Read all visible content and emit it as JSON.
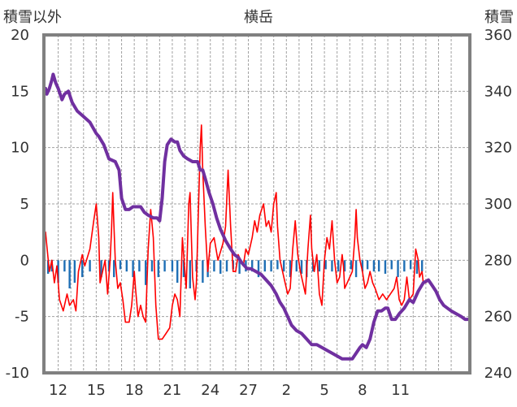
{
  "chart_data": {
    "type": "line",
    "title": "横岳",
    "left_axis_label": "積雪以外",
    "right_axis_label": "積雪",
    "left_ticks": [
      20,
      15,
      10,
      5,
      0,
      -5,
      -10
    ],
    "right_ticks": [
      360,
      340,
      320,
      300,
      280,
      260,
      240
    ],
    "x_ticks": [
      "12",
      "15",
      "18",
      "21",
      "24",
      "27",
      "2",
      "5",
      "8",
      "11"
    ],
    "ylim_left": [
      -10,
      20
    ],
    "ylim_right": [
      240,
      360
    ],
    "x_range_days": [
      0,
      30
    ],
    "grid": true,
    "colors": {
      "frame": "#808080",
      "grid": "#a0a0a0",
      "temperature": "#ff0000",
      "precipitation": "#1f6fb5",
      "snow": "#7030a0"
    },
    "series": [
      {
        "name": "",
        "role": "temperature",
        "axis": "left",
        "color": "#ff0000",
        "points": [
          [
            0.0,
            2.5
          ],
          [
            0.3,
            -1.0
          ],
          [
            0.5,
            0.0
          ],
          [
            0.7,
            -2.0
          ],
          [
            0.9,
            -0.5
          ],
          [
            1.1,
            -3.5
          ],
          [
            1.4,
            -4.5
          ],
          [
            1.7,
            -3.0
          ],
          [
            1.9,
            -4.0
          ],
          [
            2.2,
            -3.5
          ],
          [
            2.4,
            -4.5
          ],
          [
            2.6,
            -1.0
          ],
          [
            2.9,
            0.5
          ],
          [
            3.1,
            -0.5
          ],
          [
            3.5,
            1.0
          ],
          [
            3.8,
            3.5
          ],
          [
            4.0,
            5.0
          ],
          [
            4.2,
            2.0
          ],
          [
            4.3,
            -2.0
          ],
          [
            4.5,
            -1.0
          ],
          [
            4.7,
            0.0
          ],
          [
            4.9,
            -3.0
          ],
          [
            5.1,
            0.0
          ],
          [
            5.2,
            2.5
          ],
          [
            5.3,
            6.0
          ],
          [
            5.4,
            3.0
          ],
          [
            5.5,
            0.0
          ],
          [
            5.7,
            -2.5
          ],
          [
            5.9,
            -2.0
          ],
          [
            6.1,
            -3.5
          ],
          [
            6.3,
            -5.5
          ],
          [
            6.6,
            -5.5
          ],
          [
            6.8,
            -4.0
          ],
          [
            7.0,
            -1.0
          ],
          [
            7.1,
            -2.5
          ],
          [
            7.3,
            -5.0
          ],
          [
            7.5,
            -4.0
          ],
          [
            7.7,
            -5.0
          ],
          [
            7.9,
            -5.5
          ],
          [
            8.0,
            -2.0
          ],
          [
            8.1,
            1.0
          ],
          [
            8.3,
            4.5
          ],
          [
            8.5,
            2.0
          ],
          [
            8.7,
            -4.0
          ],
          [
            8.9,
            -7.0
          ],
          [
            9.2,
            -7.0
          ],
          [
            9.5,
            -6.5
          ],
          [
            9.8,
            -6.0
          ],
          [
            10.0,
            -4.0
          ],
          [
            10.2,
            -3.0
          ],
          [
            10.4,
            -3.5
          ],
          [
            10.6,
            -5.0
          ],
          [
            10.8,
            2.0
          ],
          [
            11.0,
            -1.0
          ],
          [
            11.1,
            -2.5
          ],
          [
            11.3,
            5.0
          ],
          [
            11.4,
            6.0
          ],
          [
            11.6,
            -1.5
          ],
          [
            11.8,
            -3.5
          ],
          [
            11.9,
            -2.0
          ],
          [
            12.1,
            6.0
          ],
          [
            12.2,
            10.0
          ],
          [
            12.3,
            12.0
          ],
          [
            12.4,
            8.0
          ],
          [
            12.6,
            3.0
          ],
          [
            12.8,
            -1.0
          ],
          [
            13.0,
            1.5
          ],
          [
            13.3,
            2.0
          ],
          [
            13.6,
            0.0
          ],
          [
            14.0,
            1.5
          ],
          [
            14.2,
            3.0
          ],
          [
            14.4,
            8.0
          ],
          [
            14.6,
            3.0
          ],
          [
            14.8,
            -1.0
          ],
          [
            15.0,
            -1.0
          ],
          [
            15.2,
            0.5
          ],
          [
            15.4,
            0.0
          ],
          [
            15.6,
            -0.5
          ],
          [
            15.8,
            1.0
          ],
          [
            16.0,
            0.5
          ],
          [
            16.3,
            2.0
          ],
          [
            16.5,
            3.5
          ],
          [
            16.7,
            2.5
          ],
          [
            16.9,
            4.0
          ],
          [
            17.2,
            5.0
          ],
          [
            17.4,
            3.0
          ],
          [
            17.6,
            3.5
          ],
          [
            17.8,
            2.5
          ],
          [
            18.0,
            5.0
          ],
          [
            18.2,
            6.0
          ],
          [
            18.3,
            3.0
          ],
          [
            18.5,
            0.0
          ],
          [
            18.7,
            -1.0
          ],
          [
            18.9,
            -2.0
          ],
          [
            19.1,
            -3.0
          ],
          [
            19.3,
            -2.5
          ],
          [
            19.5,
            1.0
          ],
          [
            19.7,
            3.5
          ],
          [
            19.9,
            0.5
          ],
          [
            20.1,
            -1.0
          ],
          [
            20.3,
            -2.0
          ],
          [
            20.5,
            -3.0
          ],
          [
            20.7,
            1.0
          ],
          [
            20.9,
            4.0
          ],
          [
            21.0,
            1.0
          ],
          [
            21.2,
            -1.0
          ],
          [
            21.4,
            0.5
          ],
          [
            21.6,
            -3.0
          ],
          [
            21.8,
            -4.0
          ],
          [
            22.0,
            0.0
          ],
          [
            22.2,
            2.0
          ],
          [
            22.4,
            1.0
          ],
          [
            22.6,
            3.5
          ],
          [
            22.8,
            0.0
          ],
          [
            23.0,
            -2.0
          ],
          [
            23.2,
            -1.5
          ],
          [
            23.4,
            0.5
          ],
          [
            23.5,
            -0.5
          ],
          [
            23.6,
            -2.5
          ],
          [
            23.8,
            -2.0
          ],
          [
            24.0,
            -1.5
          ],
          [
            24.2,
            -1.0
          ],
          [
            24.4,
            2.0
          ],
          [
            24.5,
            4.5
          ],
          [
            24.6,
            2.0
          ],
          [
            24.8,
            0.0
          ],
          [
            25.0,
            -1.0
          ],
          [
            25.2,
            -2.5
          ],
          [
            25.4,
            -2.0
          ],
          [
            25.6,
            -1.0
          ],
          [
            25.8,
            -2.0
          ],
          [
            26.0,
            -2.5
          ],
          [
            26.3,
            -3.5
          ],
          [
            26.6,
            -3.0
          ],
          [
            26.9,
            -3.5
          ],
          [
            27.2,
            -3.0
          ],
          [
            27.5,
            -2.5
          ],
          [
            27.7,
            -1.5
          ],
          [
            27.9,
            -3.5
          ],
          [
            28.1,
            -4.0
          ],
          [
            28.3,
            -3.5
          ],
          [
            28.5,
            -1.5
          ],
          [
            28.7,
            -3.5
          ],
          [
            29.0,
            -3.0
          ],
          [
            29.2,
            1.0
          ],
          [
            29.4,
            0.0
          ],
          [
            29.5,
            -1.5
          ],
          [
            29.7,
            -1.0
          ],
          [
            29.8,
            -2.0
          ],
          [
            30.0,
            -2.0
          ]
        ]
      },
      {
        "name": "",
        "role": "snow",
        "axis": "right",
        "color": "#7030a0",
        "points": [
          [
            0.0,
            341
          ],
          [
            0.1,
            339
          ],
          [
            0.3,
            341
          ],
          [
            0.5,
            344
          ],
          [
            0.6,
            346
          ],
          [
            0.8,
            343
          ],
          [
            1.0,
            341
          ],
          [
            1.3,
            337
          ],
          [
            1.5,
            339
          ],
          [
            1.8,
            340
          ],
          [
            2.1,
            336
          ],
          [
            2.5,
            333
          ],
          [
            3.0,
            331
          ],
          [
            3.5,
            329
          ],
          [
            4.0,
            325
          ],
          [
            4.2,
            324
          ],
          [
            4.6,
            321
          ],
          [
            5.0,
            316
          ],
          [
            5.5,
            315
          ],
          [
            5.8,
            312
          ],
          [
            6.0,
            302
          ],
          [
            6.3,
            298
          ],
          [
            6.6,
            298
          ],
          [
            6.9,
            299
          ],
          [
            7.2,
            299
          ],
          [
            7.5,
            299
          ],
          [
            7.8,
            297
          ],
          [
            8.1,
            296
          ],
          [
            8.5,
            295
          ],
          [
            8.8,
            295
          ],
          [
            9.0,
            294
          ],
          [
            9.2,
            302
          ],
          [
            9.4,
            315
          ],
          [
            9.6,
            321
          ],
          [
            9.9,
            323
          ],
          [
            10.2,
            322
          ],
          [
            10.4,
            322
          ],
          [
            10.6,
            319
          ],
          [
            10.9,
            317
          ],
          [
            11.2,
            316
          ],
          [
            11.6,
            315
          ],
          [
            12.0,
            315
          ],
          [
            12.2,
            312
          ],
          [
            12.4,
            312
          ],
          [
            12.6,
            309
          ],
          [
            12.9,
            304
          ],
          [
            13.2,
            300
          ],
          [
            13.5,
            295
          ],
          [
            13.8,
            291
          ],
          [
            14.2,
            287
          ],
          [
            14.6,
            284
          ],
          [
            14.9,
            282
          ],
          [
            15.2,
            281
          ],
          [
            15.5,
            279
          ],
          [
            15.9,
            277
          ],
          [
            16.2,
            277
          ],
          [
            16.6,
            276
          ],
          [
            17.0,
            275
          ],
          [
            17.4,
            273
          ],
          [
            17.8,
            271
          ],
          [
            18.2,
            268
          ],
          [
            18.5,
            265
          ],
          [
            18.8,
            263
          ],
          [
            19.1,
            260
          ],
          [
            19.4,
            257
          ],
          [
            19.8,
            255
          ],
          [
            20.2,
            254
          ],
          [
            20.6,
            252
          ],
          [
            21.0,
            250
          ],
          [
            21.4,
            250
          ],
          [
            21.8,
            249
          ],
          [
            22.2,
            248
          ],
          [
            22.6,
            247
          ],
          [
            23.0,
            246
          ],
          [
            23.4,
            245
          ],
          [
            23.8,
            245
          ],
          [
            24.2,
            245
          ],
          [
            24.5,
            247
          ],
          [
            24.8,
            249
          ],
          [
            25.0,
            250
          ],
          [
            25.3,
            249
          ],
          [
            25.6,
            252
          ],
          [
            25.9,
            258
          ],
          [
            26.2,
            262
          ],
          [
            26.5,
            262
          ],
          [
            26.8,
            263
          ],
          [
            27.0,
            263
          ],
          [
            27.3,
            259
          ],
          [
            27.6,
            259
          ],
          [
            27.9,
            261
          ],
          [
            28.3,
            263
          ],
          [
            28.7,
            266
          ],
          [
            29.0,
            265
          ],
          [
            29.4,
            269
          ],
          [
            29.8,
            272
          ],
          [
            30.2,
            273
          ],
          [
            30.5,
            271
          ],
          [
            30.8,
            269
          ],
          [
            31.1,
            266
          ],
          [
            31.4,
            264
          ],
          [
            31.7,
            263
          ],
          [
            32.0,
            262
          ],
          [
            32.4,
            261
          ],
          [
            32.8,
            260
          ],
          [
            33.1,
            259
          ],
          [
            33.4,
            259
          ]
        ]
      },
      {
        "name": "",
        "role": "precipitation",
        "axis": "left",
        "type": "bar",
        "color": "#1f6fb5",
        "days": [
          0.2,
          0.5,
          1.0,
          1.5,
          1.9,
          2.3,
          2.9,
          3.5,
          4.4,
          5.0,
          5.4,
          5.9,
          6.4,
          6.9,
          7.4,
          7.9,
          8.4,
          8.9,
          9.4,
          10.0,
          10.4,
          10.9,
          11.4,
          11.9,
          12.4,
          12.8,
          13.3,
          13.8,
          14.3,
          14.8,
          15.3,
          15.8,
          16.3,
          16.8,
          17.3,
          17.8,
          18.3,
          18.8,
          19.3,
          19.8,
          20.2,
          20.6,
          21.1,
          21.6,
          22.1,
          22.6,
          23.1,
          23.6,
          24.1,
          24.5,
          25.0,
          25.4,
          25.9,
          26.3,
          26.8,
          27.3,
          27.8,
          28.3,
          28.8,
          29.3,
          29.7
        ],
        "values": [
          -1.2,
          -1.0,
          -2.0,
          -1.0,
          -2.5,
          -2.0,
          -1.5,
          -1.0,
          -1.5,
          -1.0,
          -1.5,
          -0.8,
          -1.0,
          -1.5,
          -1.0,
          -2.2,
          -1.0,
          -1.5,
          -1.0,
          -1.0,
          -2.0,
          -1.5,
          -2.5,
          -1.0,
          -2.0,
          -1.5,
          -1.0,
          -1.2,
          -1.0,
          -0.8,
          -1.2,
          -1.0,
          -1.0,
          -1.5,
          -1.0,
          -1.0,
          -0.8,
          -1.0,
          -1.5,
          -1.0,
          -1.2,
          -1.5,
          -1.0,
          -1.0,
          -0.8,
          -1.0,
          -1.0,
          -1.0,
          -0.8,
          -1.5,
          -1.0,
          -0.8,
          -1.0,
          -1.0,
          -1.2,
          -0.8,
          -1.5,
          -1.0,
          -0.8,
          -1.2,
          -1.0
        ]
      }
    ]
  }
}
